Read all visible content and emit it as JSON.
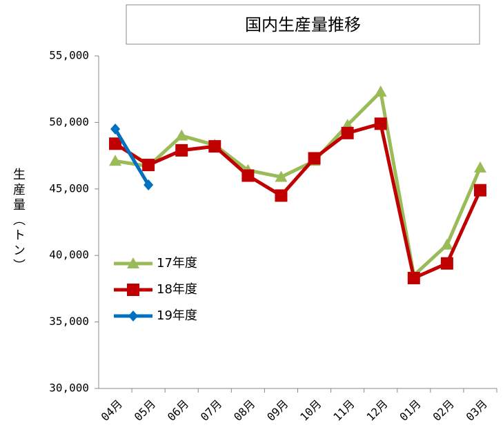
{
  "chart_data": {
    "type": "line",
    "title": "国内生産量推移",
    "y_label": "生産量（トン）",
    "categories": [
      "04月",
      "05月",
      "06月",
      "07月",
      "08月",
      "09月",
      "10月",
      "11月",
      "12月",
      "01月",
      "02月",
      "03月"
    ],
    "series": [
      {
        "name": "17年度",
        "color": "#9bbb59",
        "marker": "triangle",
        "values": [
          47100,
          46700,
          49000,
          48300,
          46400,
          45900,
          47100,
          49800,
          52300,
          38500,
          40800,
          46600
        ]
      },
      {
        "name": "18年度",
        "color": "#c00000",
        "marker": "square",
        "values": [
          48400,
          46800,
          47900,
          48200,
          46000,
          44500,
          47300,
          49200,
          49900,
          38300,
          39400,
          44900
        ]
      },
      {
        "name": "19年度",
        "color": "#0070c0",
        "marker": "diamond",
        "values": [
          49500,
          45300,
          null,
          null,
          null,
          null,
          null,
          null,
          null,
          null,
          null,
          null
        ]
      }
    ],
    "ylim": [
      30000,
      55000
    ],
    "yticks": [
      {
        "value": 30000,
        "label": "30,000"
      },
      {
        "value": 35000,
        "label": "35,000"
      },
      {
        "value": 40000,
        "label": "40,000"
      },
      {
        "value": 45000,
        "label": "45,000"
      },
      {
        "value": 50000,
        "label": "50,000"
      },
      {
        "value": 55000,
        "label": "55,000"
      }
    ],
    "grid": false,
    "legend": "center-left"
  }
}
